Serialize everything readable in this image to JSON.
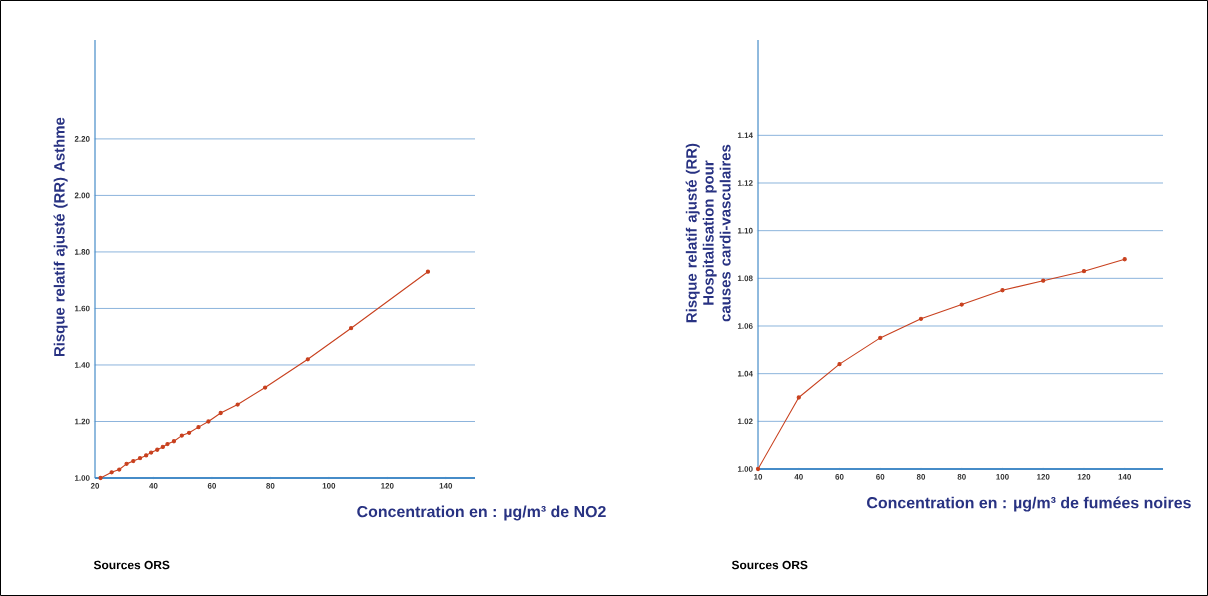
{
  "chart_data": [
    {
      "type": "line",
      "ylabel": "Risque relatif ajusté (RR) Asthme",
      "xlabel": "Concentration en : µg/m³ de NO2",
      "annotations": [
        "Sources ORS"
      ],
      "x": [
        21.9,
        25.7,
        28.3,
        30.8,
        33.1,
        35.4,
        37.5,
        39.2,
        41.3,
        43.2,
        44.8,
        47.0,
        49.7,
        52.2,
        55.4,
        58.8,
        63.0,
        68.8,
        78.2,
        92.8,
        107.6,
        133.9
      ],
      "series": [
        {
          "color": "#c8401e",
          "values": [
            1.0,
            1.02,
            1.03,
            1.05,
            1.06,
            1.07,
            1.08,
            1.09,
            1.1,
            1.11,
            1.12,
            1.13,
            1.15,
            1.16,
            1.18,
            1.2,
            1.23,
            1.26,
            1.32,
            1.42,
            1.53,
            1.73
          ]
        }
      ],
      "xlim": [
        20,
        150
      ],
      "ylim": [
        1.0,
        2.55
      ],
      "xticks": [
        20,
        40,
        60,
        80,
        100,
        120,
        140
      ],
      "yticks": [
        {
          "value": 1.0,
          "label": "1.00"
        },
        {
          "value": 1.2,
          "label": "1.20"
        },
        {
          "value": 1.4,
          "label": "1.40"
        },
        {
          "value": 1.6,
          "label": "1.60"
        },
        {
          "value": 1.8,
          "label": "1.80"
        },
        {
          "value": 2.0,
          "label": "2.00"
        },
        {
          "value": 2.2,
          "label": "2.20"
        }
      ],
      "grid": "y",
      "marker": "circle",
      "line_style": "solid"
    },
    {
      "type": "line",
      "ylabel": "Risque relatif ajusté (RR) Hospitalisation pour causes cardi-vasculaires",
      "xlabel": "Concentration en : µg/m³ de fumées noires",
      "annotations": [
        "Sources ORS"
      ],
      "categories": [
        "10",
        "40",
        "60",
        "60",
        "80",
        "80",
        "100",
        "120",
        "120",
        "140"
      ],
      "series": [
        {
          "color": "#c8401e",
          "values": [
            1.0,
            1.03,
            1.044,
            1.055,
            1.063,
            1.069,
            1.075,
            1.079,
            1.083,
            1.088
          ]
        }
      ],
      "ylim": [
        1.0,
        1.18
      ],
      "yticks": [
        {
          "value": 1.0,
          "label": "1.00"
        },
        {
          "value": 1.02,
          "label": "1.02"
        },
        {
          "value": 1.04,
          "label": "1.04"
        },
        {
          "value": 1.06,
          "label": "1.06"
        },
        {
          "value": 1.08,
          "label": "1.08"
        },
        {
          "value": 1.1,
          "label": "1.10"
        },
        {
          "value": 1.12,
          "label": "1.12"
        },
        {
          "value": 1.14,
          "label": "1.14"
        }
      ],
      "grid": "y",
      "marker": "circle",
      "line_style": "solid"
    }
  ]
}
